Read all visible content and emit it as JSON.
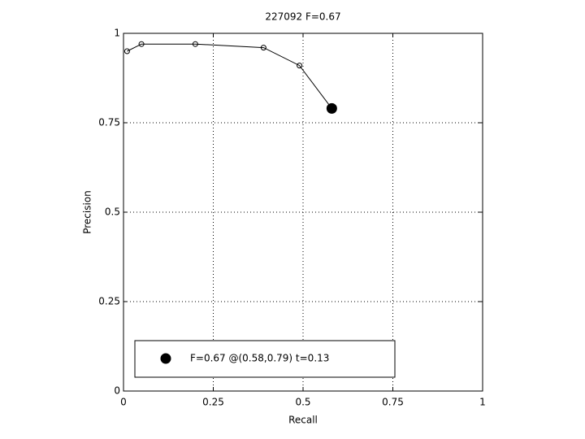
{
  "chart_data": {
    "type": "line",
    "title": "227092 F=0.67",
    "x_label": "Recall",
    "y_label": "Precision",
    "series": [
      {
        "color": "#000000",
        "marker": "open",
        "x": [
          0.01,
          0.05,
          0.2,
          0.39,
          0.49,
          0.58
        ],
        "values": [
          0.95,
          0.97,
          0.97,
          0.96,
          0.91,
          0.79
        ]
      },
      {
        "name": "F=0.67 @(0.58,0.79) t=0.13",
        "color": "#000000",
        "marker": "filled",
        "x": [
          0.58
        ],
        "values": [
          0.79
        ]
      }
    ],
    "xlim": [
      0,
      1
    ],
    "xticks": [
      0,
      0.25,
      0.5,
      0.75,
      1
    ],
    "ylim": [
      0,
      1
    ],
    "yticks": [
      0,
      0.25,
      0.5,
      0.75,
      1
    ],
    "grid": true,
    "legend": "lower left"
  }
}
